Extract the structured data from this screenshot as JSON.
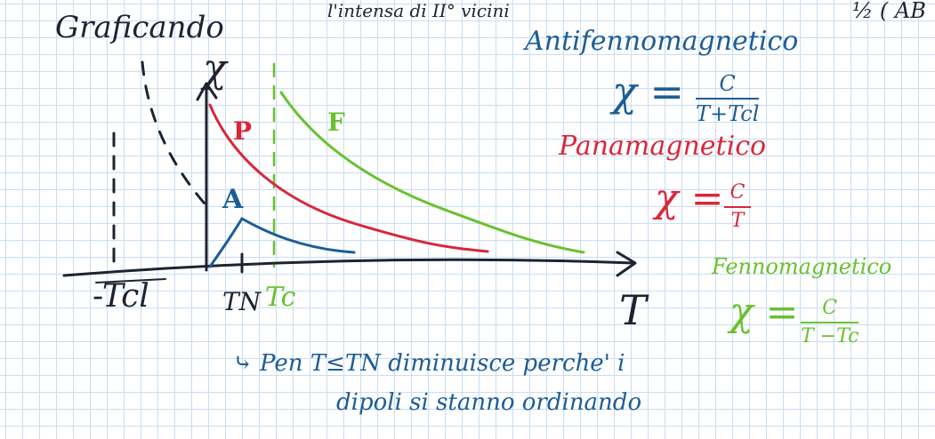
{
  "header": {
    "title": "Graficando",
    "top_note": "l'intensa di II° vicini",
    "corner_note": "½ ( AB"
  },
  "graph": {
    "y_axis": "χ",
    "x_axis": "T",
    "label_p": "P",
    "label_f": "F",
    "label_a": "A",
    "tick_minus_tcl": "-Tcl",
    "tick_tn": "TN",
    "tick_tc": "Tc"
  },
  "formulas": {
    "antiferro": {
      "title": "Antifennomagnetico",
      "chi": "χ =",
      "numerator": "C",
      "denominator": "T+Tcl"
    },
    "para": {
      "title": "Panamagnetico",
      "chi": "χ =",
      "numerator": "C",
      "denominator": "T"
    },
    "ferro": {
      "title": "Fennomagnetico",
      "chi": "χ =",
      "numerator": "C",
      "denominator": "T −Tc"
    }
  },
  "notes": {
    "bottom_line1": "⤷ Pen T≤TN diminuisce perche' i",
    "bottom_line2": "dipoli si stanno ordinando"
  },
  "colors": {
    "ink_dark": "#1f2330",
    "ink_blue": "#1d5d96",
    "ink_red": "#d7283a",
    "ink_green": "#69c12f",
    "grid": "#c9ddf2"
  }
}
